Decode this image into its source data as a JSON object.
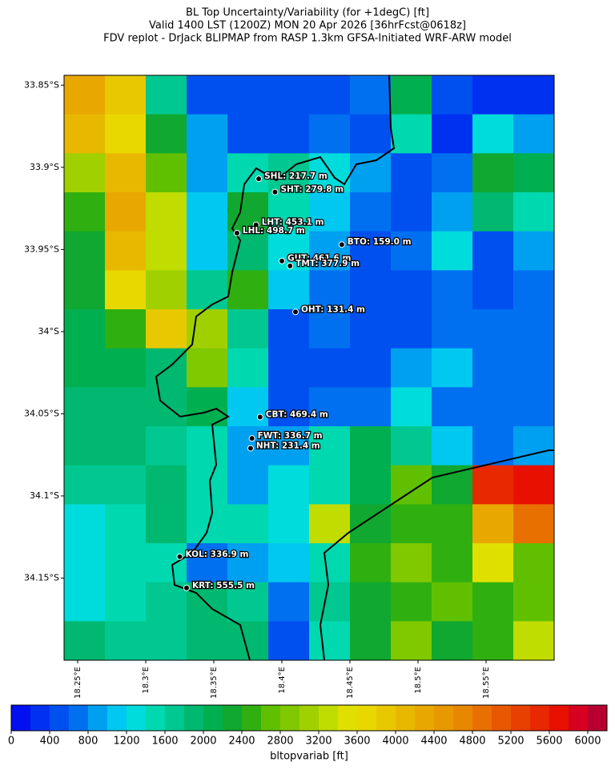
{
  "chart_data": {
    "type": "map",
    "title": [
      "BL Top Uncertainty/Variability (for +1degC) [ft]",
      "Valid 1400 LST (1200Z) MON 20 Apr 2026 [36hrFcst@0618z]",
      "FDV replot - DrJack BLIPMAP from RASP 1.3km GFSA-Initiated WRF-ARW model"
    ],
    "xlim": [
      18.24,
      18.6
    ],
    "ylim": [
      -33.844,
      -34.2
    ],
    "xticks": [
      {
        "value": 18.25,
        "label": "18.25°E"
      },
      {
        "value": 18.3,
        "label": "18.3°E"
      },
      {
        "value": 18.35,
        "label": "18.35°E"
      },
      {
        "value": 18.4,
        "label": "18.4°E"
      },
      {
        "value": 18.45,
        "label": "18.45°E"
      },
      {
        "value": 18.5,
        "label": "18.5°E"
      },
      {
        "value": 18.55,
        "label": "18.55°E"
      }
    ],
    "yticks": [
      {
        "value": -33.85,
        "label": "33.85°S"
      },
      {
        "value": -33.9,
        "label": "33.9°S"
      },
      {
        "value": -33.95,
        "label": "33.95°S"
      },
      {
        "value": -34.0,
        "label": "34°S"
      },
      {
        "value": -34.05,
        "label": "34.05°S"
      },
      {
        "value": -34.1,
        "label": "34.1°S"
      },
      {
        "value": -34.15,
        "label": "34.15°S"
      }
    ],
    "grid": [
      [
        4200,
        3800,
        1600,
        400,
        400,
        400,
        400,
        600,
        2000,
        400,
        300,
        300
      ],
      [
        4000,
        3600,
        2200,
        800,
        400,
        400,
        600,
        400,
        1400,
        200,
        1200,
        800
      ],
      [
        3000,
        4000,
        2600,
        800,
        1400,
        1600,
        1200,
        800,
        400,
        600,
        2200,
        2000
      ],
      [
        2400,
        4200,
        3200,
        1000,
        2200,
        1400,
        1000,
        600,
        400,
        800,
        1800,
        1400
      ],
      [
        2200,
        4000,
        3200,
        1000,
        1800,
        1200,
        800,
        400,
        600,
        1200,
        400,
        800
      ],
      [
        2200,
        3600,
        3000,
        1600,
        2400,
        1000,
        600,
        400,
        400,
        600,
        400,
        600
      ],
      [
        2000,
        2400,
        3800,
        3000,
        1600,
        400,
        600,
        400,
        400,
        600,
        600,
        600
      ],
      [
        2000,
        2000,
        1800,
        2800,
        1400,
        400,
        400,
        400,
        800,
        1000,
        600,
        600
      ],
      [
        1800,
        1800,
        1800,
        2000,
        1000,
        400,
        600,
        600,
        1200,
        600,
        600,
        600
      ],
      [
        1800,
        1800,
        1600,
        1400,
        800,
        800,
        1400,
        2000,
        1600,
        1000,
        600,
        800
      ],
      [
        1600,
        1600,
        1800,
        1400,
        800,
        1200,
        1400,
        2000,
        2600,
        2200,
        5400,
        5600
      ],
      [
        1200,
        1400,
        1800,
        1400,
        1400,
        1200,
        3200,
        2200,
        2400,
        2400,
        4200,
        4800
      ],
      [
        1200,
        1400,
        1400,
        600,
        800,
        1000,
        1400,
        2400,
        2800,
        2400,
        3400,
        2600
      ],
      [
        1200,
        1400,
        1600,
        1800,
        1600,
        600,
        1600,
        2200,
        2400,
        2600,
        2400,
        2600
      ],
      [
        1800,
        1600,
        1600,
        1800,
        1800,
        400,
        1400,
        2200,
        2800,
        2200,
        2400,
        3200
      ]
    ],
    "stations": [
      {
        "label": "SHL: 217.7 m",
        "lon": 18.383,
        "lat": -33.907
      },
      {
        "label": "SHT: 279.8 m",
        "lon": 18.395,
        "lat": -33.915
      },
      {
        "label": "LHT: 453.1 m",
        "lon": 18.381,
        "lat": -33.935
      },
      {
        "label": "LHL: 498.7 m",
        "lon": 18.367,
        "lat": -33.94
      },
      {
        "label": "BTO: 159.0 m",
        "lon": 18.444,
        "lat": -33.947
      },
      {
        "label": "GUT: 461.6 m",
        "lon": 18.4,
        "lat": -33.957
      },
      {
        "label": "TMT: 377.9 m",
        "lon": 18.406,
        "lat": -33.96
      },
      {
        "label": "OHT: 131.4 m",
        "lon": 18.41,
        "lat": -33.988
      },
      {
        "label": "CBT: 469.4 m",
        "lon": 18.384,
        "lat": -34.052
      },
      {
        "label": "FWT: 336.7 m",
        "lon": 18.378,
        "lat": -34.065
      },
      {
        "label": "NHT: 231.4 m",
        "lon": 18.377,
        "lat": -34.071
      },
      {
        "label": "KOL: 336.9 m",
        "lon": 18.325,
        "lat": -34.137
      },
      {
        "label": "KRT: 555.5 m",
        "lon": 18.33,
        "lat": -34.156
      }
    ],
    "colorbar": {
      "label": "bltopvariab [ft]",
      "lim": [
        0,
        6200
      ],
      "ticks": [
        0,
        400,
        800,
        1200,
        1600,
        2000,
        2400,
        2800,
        3200,
        3600,
        4000,
        4400,
        4800,
        5200,
        5600,
        6000
      ],
      "colors": [
        "#0010f0",
        "#0030f0",
        "#0050f0",
        "#0070f0",
        "#00a0f0",
        "#00c8f0",
        "#00dcdc",
        "#00d8b0",
        "#00c890",
        "#00b870",
        "#00b050",
        "#10a830",
        "#30b010",
        "#60c000",
        "#80c800",
        "#a0d000",
        "#c0dc00",
        "#e0e000",
        "#e8d800",
        "#e8c800",
        "#e8b800",
        "#e8a800",
        "#e89800",
        "#e88800",
        "#e87000",
        "#e85800",
        "#e84000",
        "#e82800",
        "#e81000",
        "#d80020",
        "#b80030"
      ]
    }
  }
}
